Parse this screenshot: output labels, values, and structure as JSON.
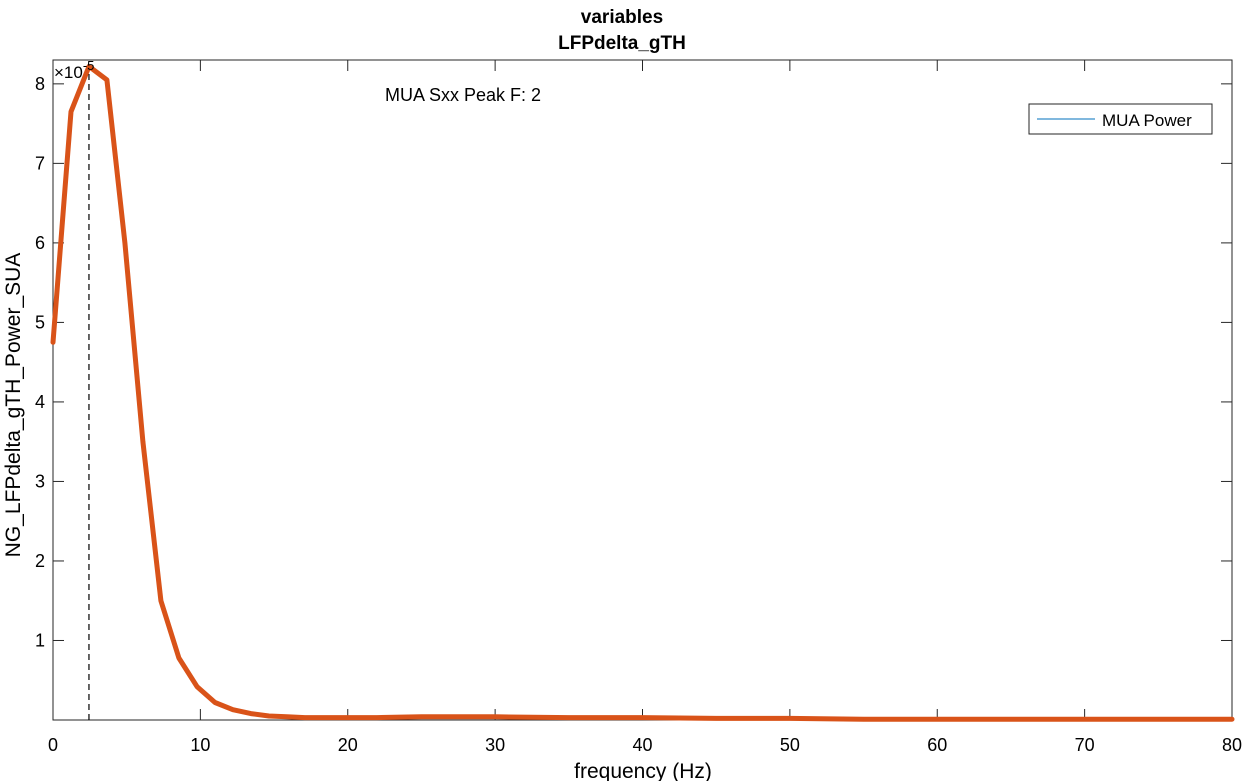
{
  "chart_data": {
    "type": "line",
    "title": "variables",
    "subtitle": "LFPdelta_gTH",
    "xlabel": "frequency (Hz)",
    "ylabel": "NG_LFPdelta_gTH_Power_SUA",
    "xlim": [
      0,
      80
    ],
    "ylim": [
      0,
      8.3
    ],
    "y_exponent_label": "×10",
    "y_exponent_power": "-5",
    "xticks": [
      0,
      10,
      20,
      30,
      40,
      50,
      60,
      70,
      80
    ],
    "xtick_labels": [
      "0",
      "10",
      "20",
      "30",
      "40",
      "50",
      "60",
      "70",
      "80"
    ],
    "yticks": [
      1,
      2,
      3,
      4,
      5,
      6,
      7,
      8
    ],
    "ytick_labels": [
      "1",
      "2",
      "3",
      "4",
      "5",
      "6",
      "7",
      "8"
    ],
    "grid": false,
    "legend_position": "top-right",
    "annotation": "MUA Sxx Peak F: 2",
    "peak_line_x": 2.44,
    "series": [
      {
        "name": "MUA Power",
        "color": "#0072BD",
        "x": [],
        "values": []
      },
      {
        "color": "#D95319",
        "x": [
          0,
          1.22,
          2.44,
          3.66,
          4.88,
          6.1,
          7.32,
          8.54,
          9.77,
          10.99,
          12.21,
          13.43,
          14.65,
          15.87,
          17.09,
          18.31,
          19.53,
          20.75,
          21.97,
          25,
          30,
          35,
          40,
          45,
          50,
          55,
          60,
          65,
          70,
          75,
          80
        ],
        "values": [
          4.75,
          7.65,
          8.22,
          8.05,
          6.0,
          3.5,
          1.5,
          0.78,
          0.42,
          0.22,
          0.13,
          0.08,
          0.05,
          0.04,
          0.03,
          0.03,
          0.03,
          0.03,
          0.03,
          0.04,
          0.04,
          0.03,
          0.03,
          0.02,
          0.02,
          0.01,
          0.01,
          0.01,
          0.01,
          0.01,
          0.01
        ]
      }
    ]
  }
}
